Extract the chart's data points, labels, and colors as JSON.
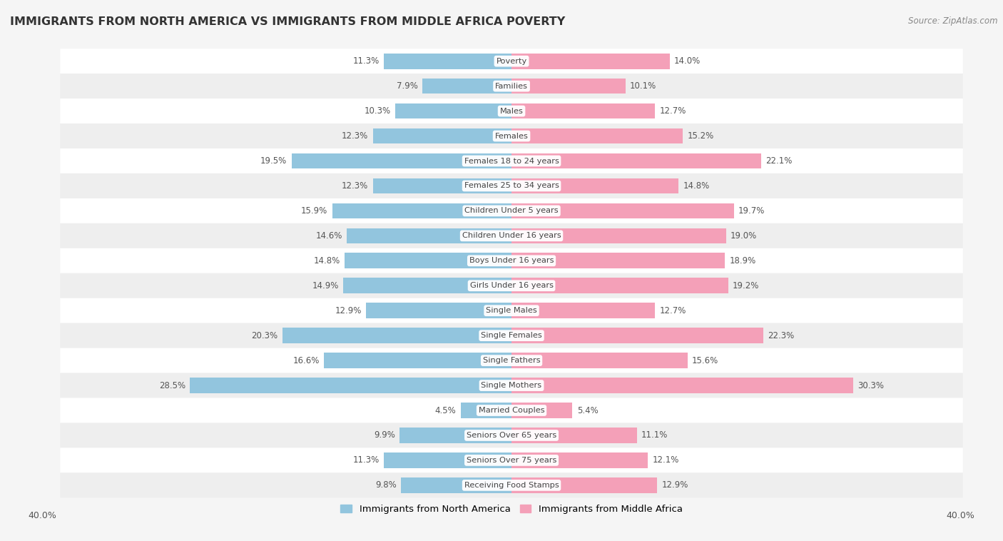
{
  "title": "IMMIGRANTS FROM NORTH AMERICA VS IMMIGRANTS FROM MIDDLE AFRICA POVERTY",
  "source": "Source: ZipAtlas.com",
  "categories": [
    "Poverty",
    "Families",
    "Males",
    "Females",
    "Females 18 to 24 years",
    "Females 25 to 34 years",
    "Children Under 5 years",
    "Children Under 16 years",
    "Boys Under 16 years",
    "Girls Under 16 years",
    "Single Males",
    "Single Females",
    "Single Fathers",
    "Single Mothers",
    "Married Couples",
    "Seniors Over 65 years",
    "Seniors Over 75 years",
    "Receiving Food Stamps"
  ],
  "north_america": [
    11.3,
    7.9,
    10.3,
    12.3,
    19.5,
    12.3,
    15.9,
    14.6,
    14.8,
    14.9,
    12.9,
    20.3,
    16.6,
    28.5,
    4.5,
    9.9,
    11.3,
    9.8
  ],
  "middle_africa": [
    14.0,
    10.1,
    12.7,
    15.2,
    22.1,
    14.8,
    19.7,
    19.0,
    18.9,
    19.2,
    12.7,
    22.3,
    15.6,
    30.3,
    5.4,
    11.1,
    12.1,
    12.9
  ],
  "north_america_color": "#92c5de",
  "middle_africa_color": "#f4a0b8",
  "row_color_odd": "#f0f0f0",
  "row_color_even": "#fafafa",
  "background_color": "#f5f5f5",
  "xlim": 40.0,
  "bar_height": 0.62,
  "legend_label_na": "Immigrants from North America",
  "legend_label_ma": "Immigrants from Middle Africa"
}
